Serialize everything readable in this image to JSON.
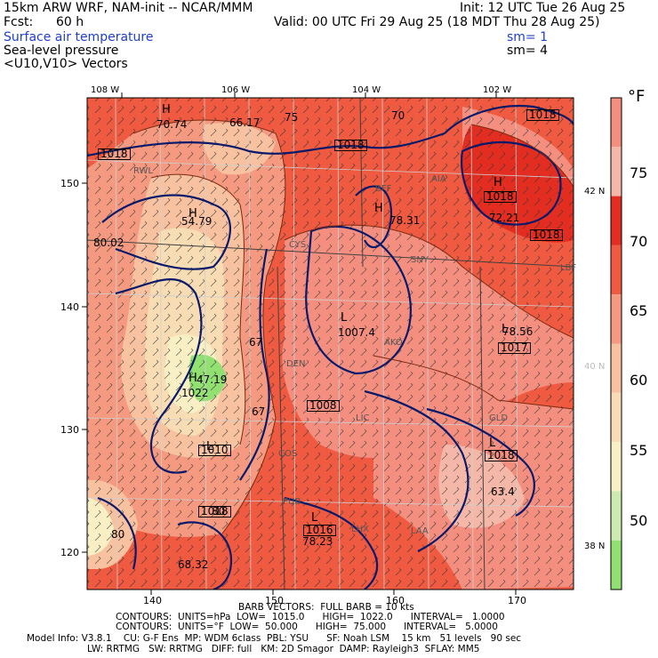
{
  "header": {
    "model_line": "15km ARW WRF, NAM-init -- NCAR/MMM",
    "init_line": "Init: 12 UTC Tue 26 Aug 25",
    "fcst_label": "Fcst:",
    "fcst_value": "60 h",
    "valid_line": "Valid: 00 UTC Fri 29 Aug 25 (18 MDT Thu 28 Aug 25)",
    "field1": "Surface air temperature",
    "field1_sm": "sm= 1",
    "field2": "Sea-level pressure",
    "field2_sm": "sm= 4",
    "field3": "<U10,V10> Vectors"
  },
  "map": {
    "lon_labels": [
      "108 W",
      "106 W",
      "104 W",
      "102 W"
    ],
    "lat_labels": [
      "42 N",
      "40 N",
      "38 N"
    ],
    "grid_y_labels": [
      "150",
      "140",
      "130",
      "120"
    ],
    "grid_x_labels": [
      "140",
      "150",
      "160",
      "170"
    ],
    "city_labels": [
      "RWL",
      "BFF",
      "CYS",
      "SNY",
      "DEN",
      "AKO",
      "LIC",
      "GLD",
      "COS",
      "PUB",
      "LAA",
      "LHX",
      "LBF",
      "AIA"
    ],
    "pressure_labels": [
      "1018",
      "1018",
      "1018",
      "1018",
      "1018",
      "1008",
      "1010",
      "1018",
      "1016",
      "1018"
    ],
    "temp_labels": [
      "70.74",
      "66.17",
      "75",
      "70",
      "54.79",
      "78.31",
      "72.21",
      "80.02",
      "78.56",
      "67",
      "67",
      "63.4",
      "78.23",
      "80",
      "68.32",
      "80"
    ],
    "high_labels": [
      "H",
      "H",
      "H",
      "H",
      "H"
    ],
    "low_labels": [
      "L",
      "L",
      "L",
      "L",
      "L"
    ],
    "extra_labels": [
      "1022",
      "1017",
      "1007.4",
      "47.19"
    ]
  },
  "colorbar": {
    "unit": "°F",
    "ticks": [
      "75",
      "70",
      "65",
      "60",
      "55",
      "50"
    ],
    "colors": [
      "#f48f80",
      "#f5b8a8",
      "#e32d20",
      "#ef5a40",
      "#f59a80",
      "#f8c2a0",
      "#f7dcb4",
      "#f8efc4",
      "#cdeab0",
      "#92e072"
    ]
  },
  "footer": {
    "barb_line": "BARB VECTORS:  FULL BARB = 10 kts",
    "contours1": "CONTOURS:  UNITS=hPa  LOW=  1015.0      HIGH=  1022.0      INTERVAL=   1.0000",
    "contours2": "CONTOURS:  UNITS=°F  LOW=  50.000      HIGH=  75.000      INTERVAL=   5.0000",
    "model_info1": "Model Info: V3.8.1    CU: G-F Ens  MP: WDM 6class  PBL: YSU      SF: Noah LSM    15 km   51 levels   90 sec",
    "model_info2": "LW: RRTMG   SW: RRTMG   DIFF: full   KM: 2D Smagor  DAMP: Rayleigh3  SFLAY: MM5"
  }
}
